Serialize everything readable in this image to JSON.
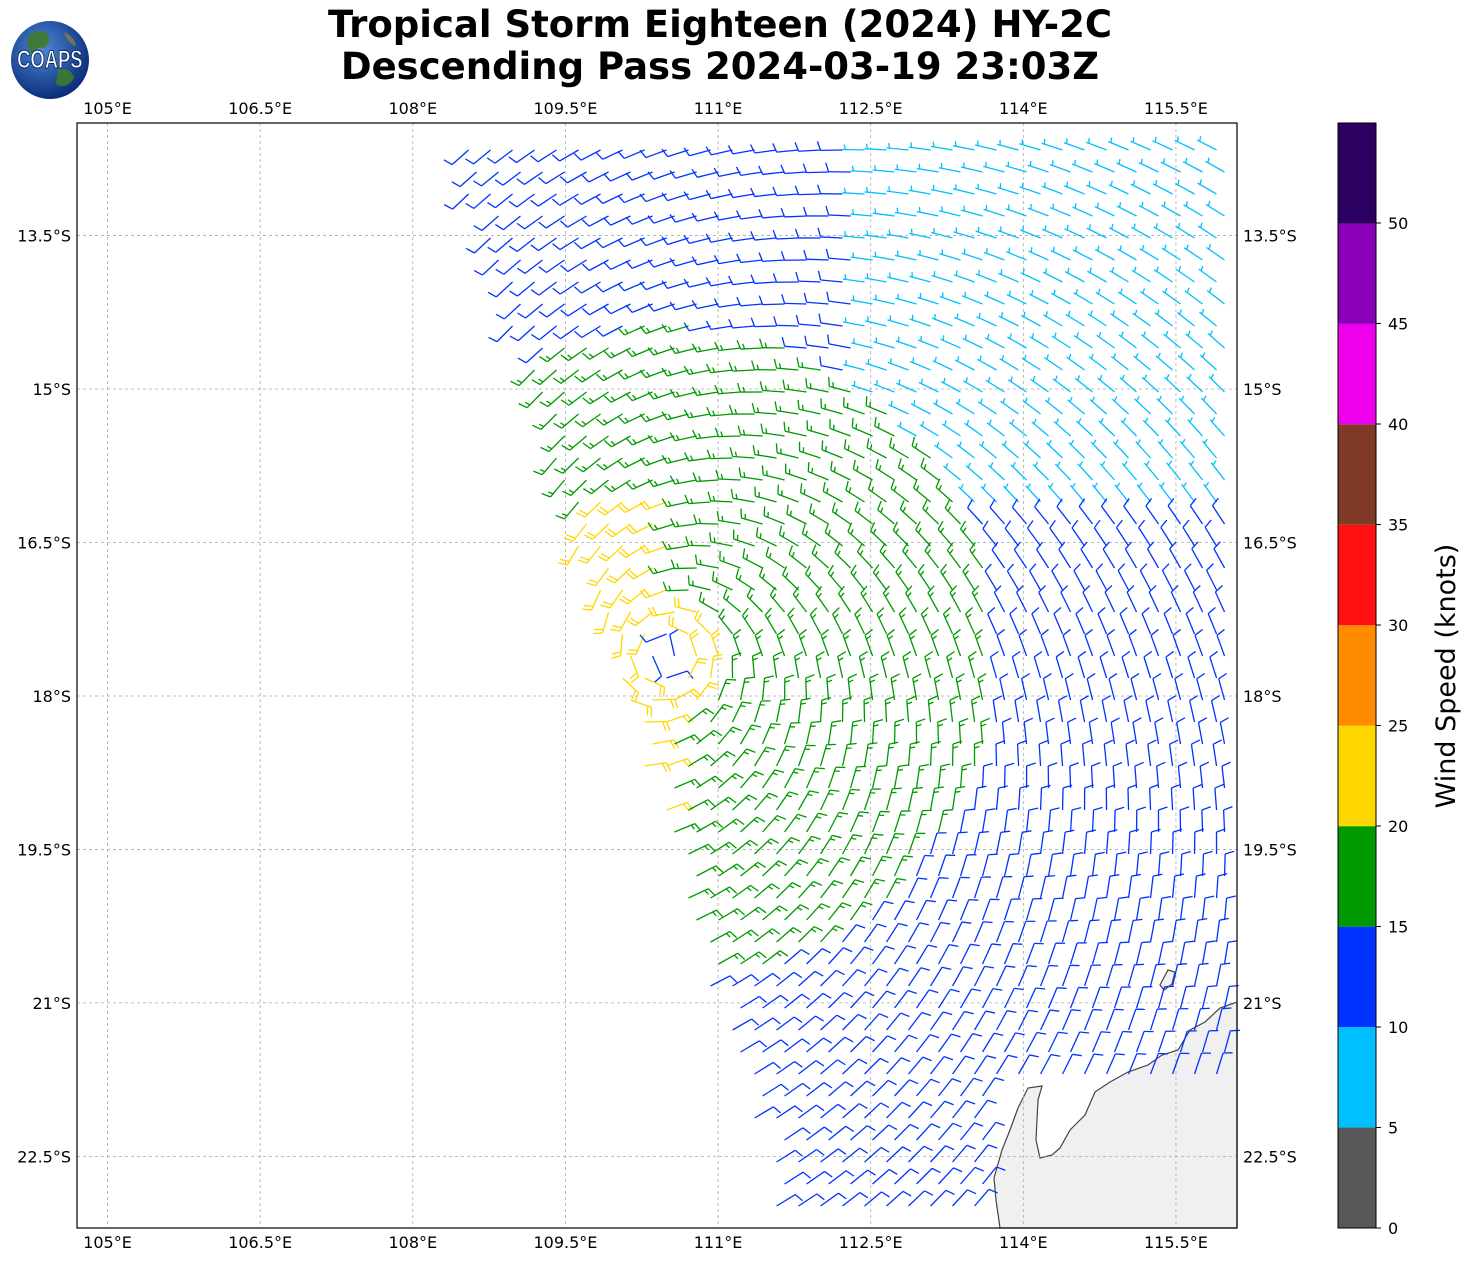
{
  "title_line1": "Tropical Storm Eighteen (2024) HY-2C",
  "title_line2": "Descending Pass 2024-03-19 23:03Z",
  "logo_text": "COAPS",
  "lon_ticks": [
    "105°E",
    "106.5°E",
    "108°E",
    "109.5°E",
    "111°E",
    "112.5°E",
    "114°E",
    "115.5°E"
  ],
  "lat_ticks": [
    "13.5°S",
    "15°S",
    "16.5°S",
    "18°S",
    "19.5°S",
    "21°S",
    "22.5°S"
  ],
  "colorbar": {
    "label": "Wind Speed (knots)",
    "ticks": [
      "0",
      "5",
      "10",
      "15",
      "20",
      "25",
      "30",
      "35",
      "40",
      "45",
      "50"
    ],
    "colors": [
      "#585858",
      "#00bfff",
      "#0033ff",
      "#009900",
      "#ffd700",
      "#ff8c00",
      "#ff1111",
      "#7f3a26",
      "#ee00ee",
      "#8a00b8",
      "#2b0060"
    ]
  },
  "chart_data": {
    "type": "wind_barb_map",
    "lon_range": [
      104.7,
      116.1
    ],
    "lat_range": [
      -23.2,
      -12.4
    ],
    "storm_center": {
      "lon": 110.5,
      "lat": -17.6
    },
    "speed_bins_knots": [
      0,
      5,
      10,
      15,
      20,
      25,
      30,
      35,
      40,
      45,
      50
    ],
    "land": "Western Australia coastline (North West Cape / Exmouth Gulf) in lower right"
  }
}
